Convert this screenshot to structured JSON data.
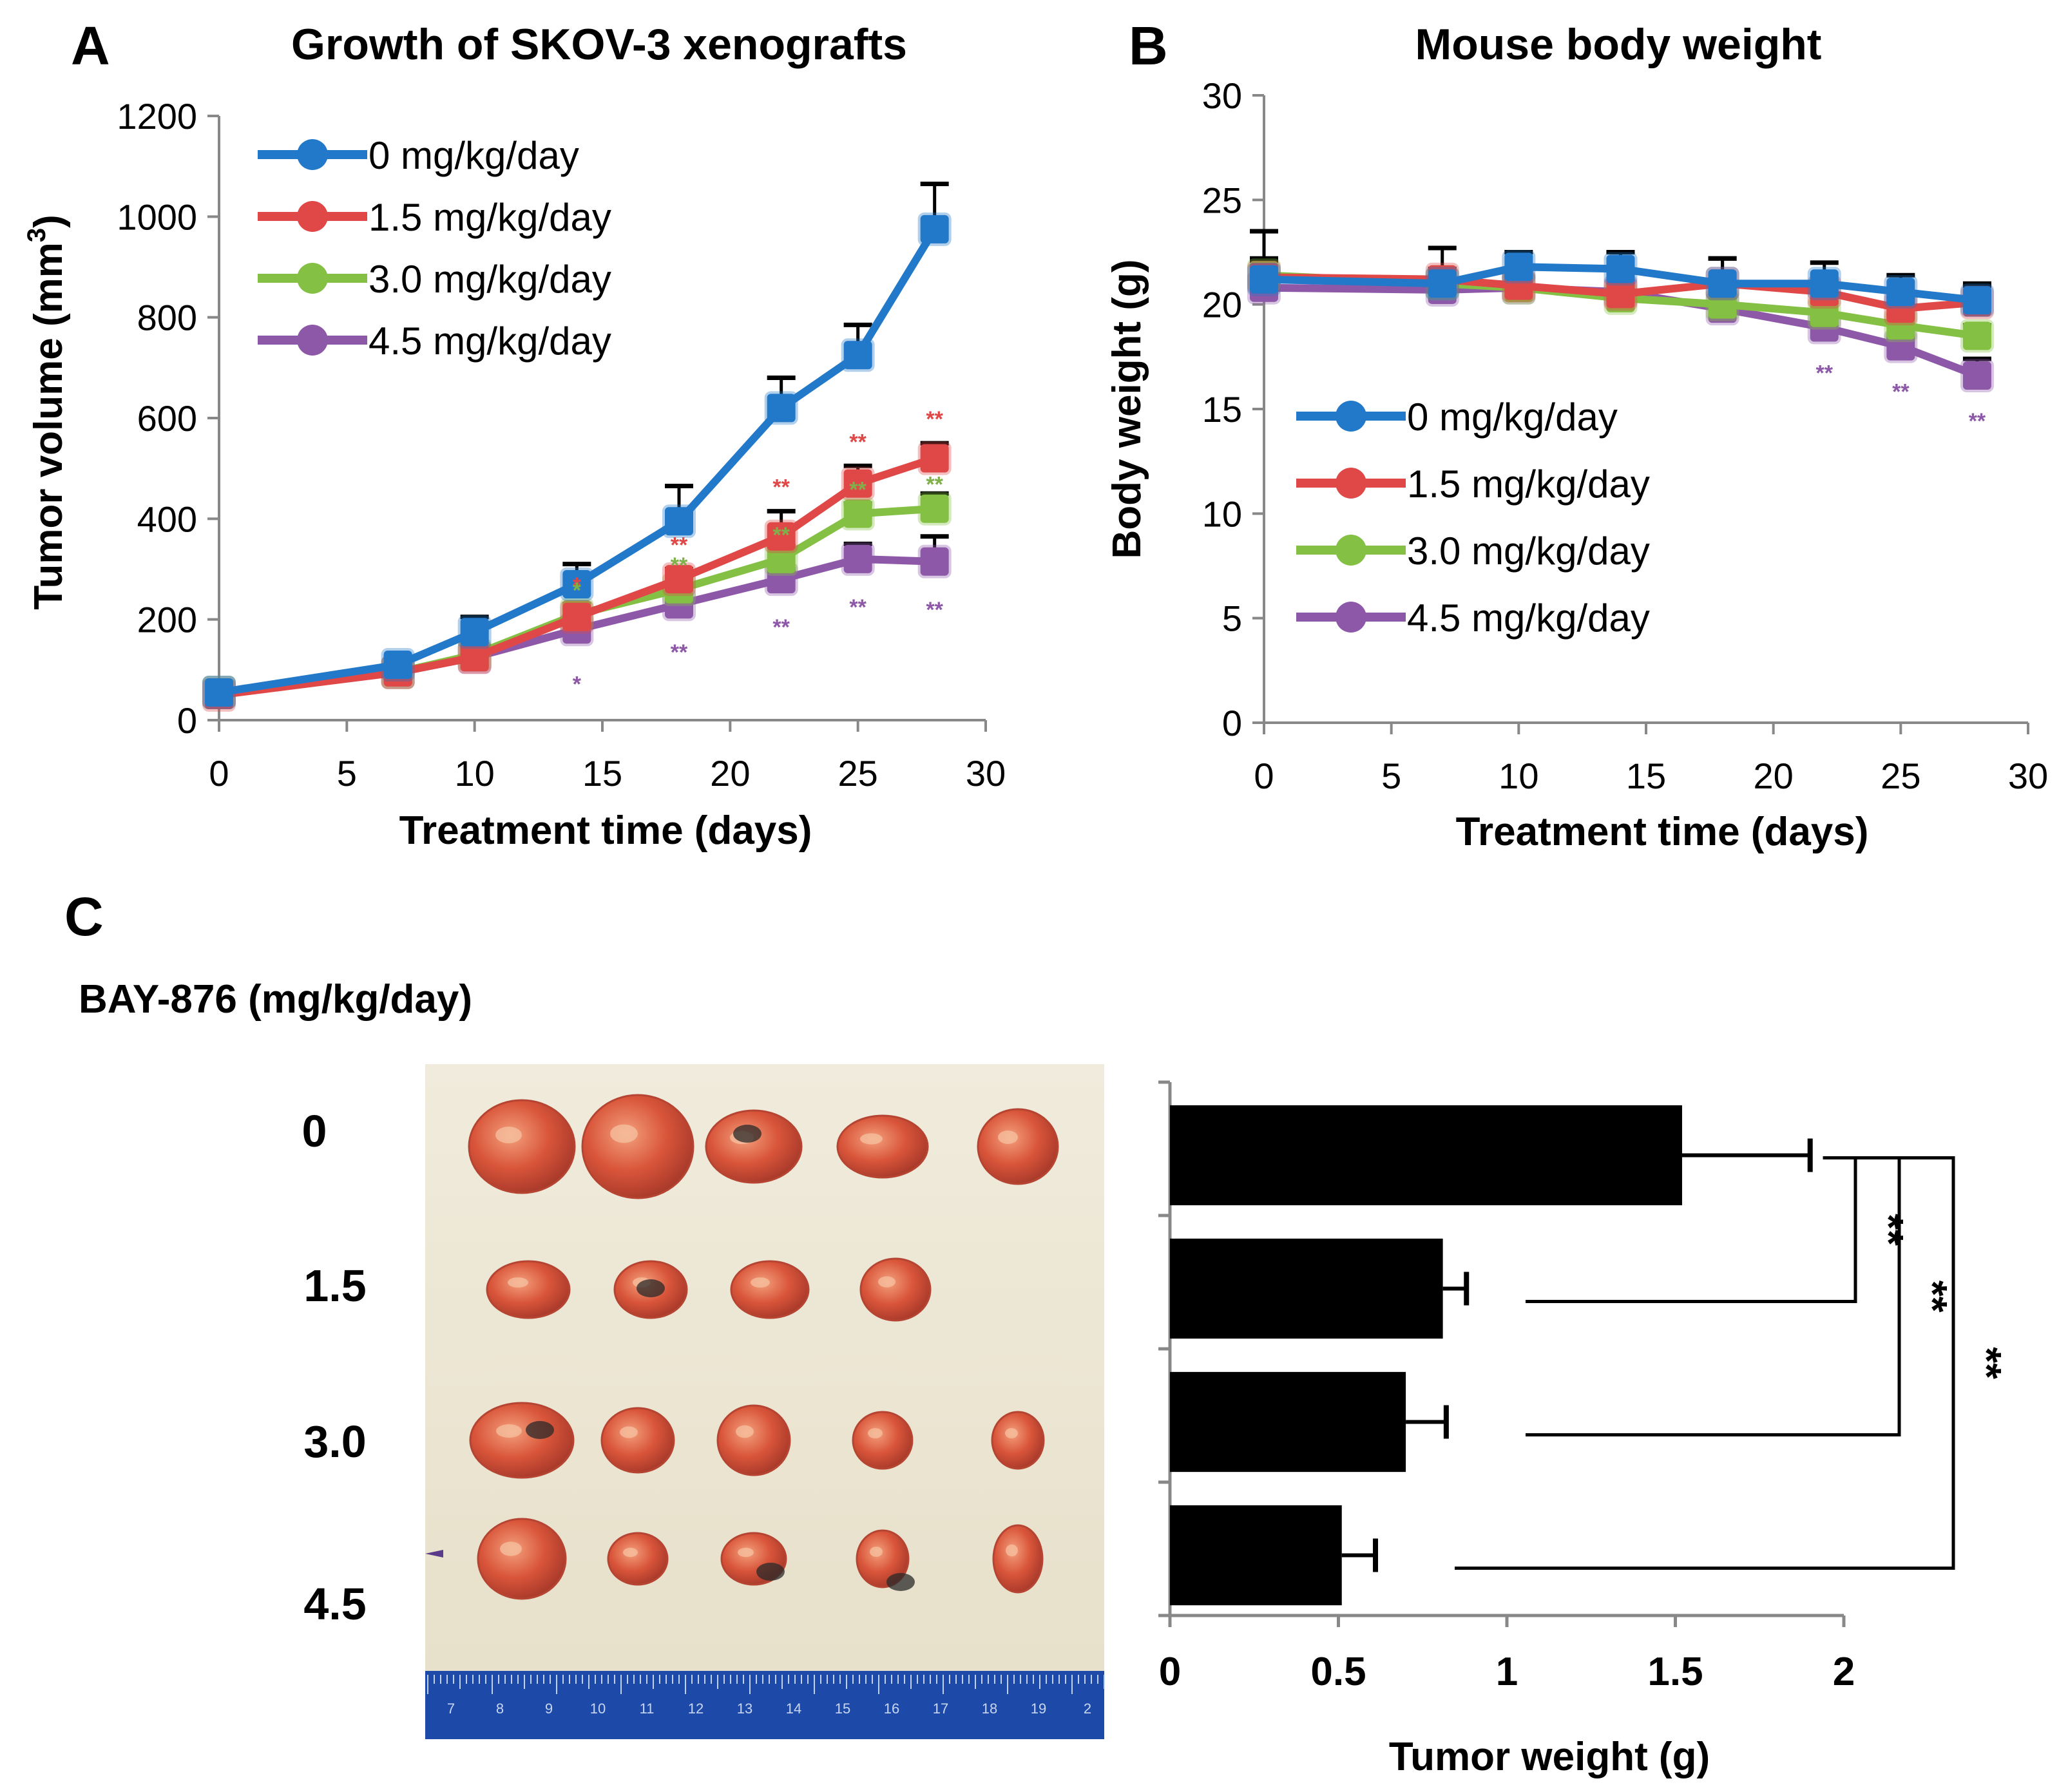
{
  "colors": {
    "s0": "#2279C9",
    "s15": "#E04848",
    "s30": "#84C043",
    "s45": "#8E58A8",
    "sig_green": "#7FB04A",
    "bar": "#000000"
  },
  "panelA": {
    "letter": "A",
    "chart_data": {
      "type": "line",
      "title": "Growth of SKOV-3 xenografts",
      "xlabel": "Treatment time (days)",
      "ylabel_main": "Tumor volume (mm",
      "ylabel_sup": "3",
      "ylabel_end": ")",
      "xlim": [
        0,
        30
      ],
      "ylim": [
        0,
        1200
      ],
      "xticks": [
        "0",
        "5",
        "10",
        "15",
        "20",
        "25",
        "30"
      ],
      "yticks": [
        "0",
        "200",
        "400",
        "600",
        "800",
        "1000",
        "1200"
      ],
      "x": [
        0,
        7,
        10,
        14,
        18,
        22,
        25,
        28
      ],
      "series": [
        {
          "name": "0 mg/kg/day",
          "color_key": "s0",
          "values": [
            55,
            110,
            175,
            270,
            395,
            620,
            725,
            975
          ],
          "errors": [
            0,
            15,
            30,
            40,
            70,
            60,
            60,
            90
          ]
        },
        {
          "name": "1.5 mg/kg/day",
          "color_key": "s15",
          "values": [
            50,
            95,
            125,
            205,
            280,
            365,
            470,
            520
          ],
          "errors": [
            0,
            10,
            20,
            15,
            20,
            50,
            35,
            30
          ],
          "sig": [
            "",
            "",
            "",
            "*",
            "**",
            "**",
            "**",
            "**"
          ]
        },
        {
          "name": "3.0 mg/kg/day",
          "color_key": "s30",
          "values": [
            55,
            95,
            130,
            210,
            260,
            320,
            410,
            420
          ],
          "errors": [
            0,
            10,
            15,
            20,
            20,
            25,
            20,
            30
          ],
          "sig": [
            "",
            "",
            "",
            "*",
            "**",
            "**",
            "**",
            "**"
          ]
        },
        {
          "name": "4.5 mg/kg/day",
          "color_key": "s45",
          "values": [
            55,
            95,
            125,
            180,
            230,
            280,
            320,
            315
          ],
          "errors": [
            0,
            10,
            15,
            20,
            20,
            20,
            30,
            50
          ],
          "sig": [
            "",
            "",
            "",
            "*",
            "**",
            "**",
            "**",
            "**"
          ]
        }
      ]
    }
  },
  "panelB": {
    "letter": "B",
    "chart_data": {
      "type": "line",
      "title": "Mouse body weight",
      "xlabel": "Treatment time (days)",
      "ylabel": "Body weight (g)",
      "xlim": [
        0,
        30
      ],
      "ylim": [
        0,
        30
      ],
      "xticks": [
        "0",
        "5",
        "10",
        "15",
        "20",
        "25",
        "30"
      ],
      "yticks": [
        "0",
        "5",
        "10",
        "15",
        "20",
        "25",
        "30"
      ],
      "x": [
        0,
        7,
        10,
        14,
        18,
        22,
        25,
        28
      ],
      "series": [
        {
          "name": "0 mg/kg/day",
          "color_key": "s0",
          "values": [
            21.2,
            21.0,
            21.8,
            21.7,
            21.0,
            21.0,
            20.6,
            20.2
          ],
          "errors": [
            2.3,
            1.7,
            0.7,
            0.8,
            1.2,
            1.0,
            0.8,
            0.8
          ]
        },
        {
          "name": "1.5 mg/kg/day",
          "color_key": "s15",
          "values": [
            21.3,
            21.2,
            20.9,
            20.5,
            21.0,
            20.6,
            19.8,
            20.1
          ],
          "errors": [
            0.8,
            0.5,
            0.6,
            0.6,
            1.2,
            0.5,
            0.5,
            0.8
          ]
        },
        {
          "name": "3.0 mg/kg/day",
          "color_key": "s30",
          "values": [
            21.4,
            21.0,
            20.8,
            20.3,
            20.0,
            19.6,
            19.0,
            18.5
          ],
          "errors": [
            0.8,
            0.5,
            0.5,
            0.5,
            0.5,
            0.5,
            0.5,
            0.5
          ]
        },
        {
          "name": "4.5 mg/kg/day",
          "color_key": "s45",
          "values": [
            20.8,
            20.7,
            20.8,
            20.6,
            19.8,
            18.9,
            18.0,
            16.6
          ],
          "errors": [
            0.5,
            0.5,
            0.5,
            0.5,
            0.5,
            0.5,
            0.5,
            0.8
          ],
          "sig": [
            "",
            "",
            "",
            "",
            "",
            "**",
            "**",
            "**"
          ]
        }
      ]
    }
  },
  "panelC": {
    "letter": "C",
    "drug_label": "BAY-876 (mg/kg/day)",
    "dose_labels": [
      "0",
      "1.5",
      "3.0",
      "4.5"
    ],
    "tumor_counts": [
      5,
      4,
      5,
      5
    ],
    "ruler_numbers": [
      "7",
      "8",
      "9",
      "10",
      "11",
      "12",
      "13",
      "14",
      "15",
      "16",
      "17",
      "18",
      "19",
      "2"
    ],
    "chart_data": {
      "type": "bar",
      "orientation": "horizontal",
      "xlabel": "Tumor weight (g)",
      "xlim": [
        0,
        2
      ],
      "xticks": [
        "0",
        "0.5",
        "1",
        "1.5",
        "2"
      ],
      "categories": [
        "0",
        "1.5",
        "3.0",
        "4.5"
      ],
      "values": [
        1.52,
        0.81,
        0.7,
        0.51
      ],
      "errors": [
        0.38,
        0.07,
        0.12,
        0.1
      ],
      "significance": [
        {
          "from": "0",
          "to": "1.5",
          "label": "**"
        },
        {
          "from": "0",
          "to": "3.0",
          "label": "**"
        },
        {
          "from": "0",
          "to": "4.5",
          "label": "**"
        }
      ]
    }
  }
}
